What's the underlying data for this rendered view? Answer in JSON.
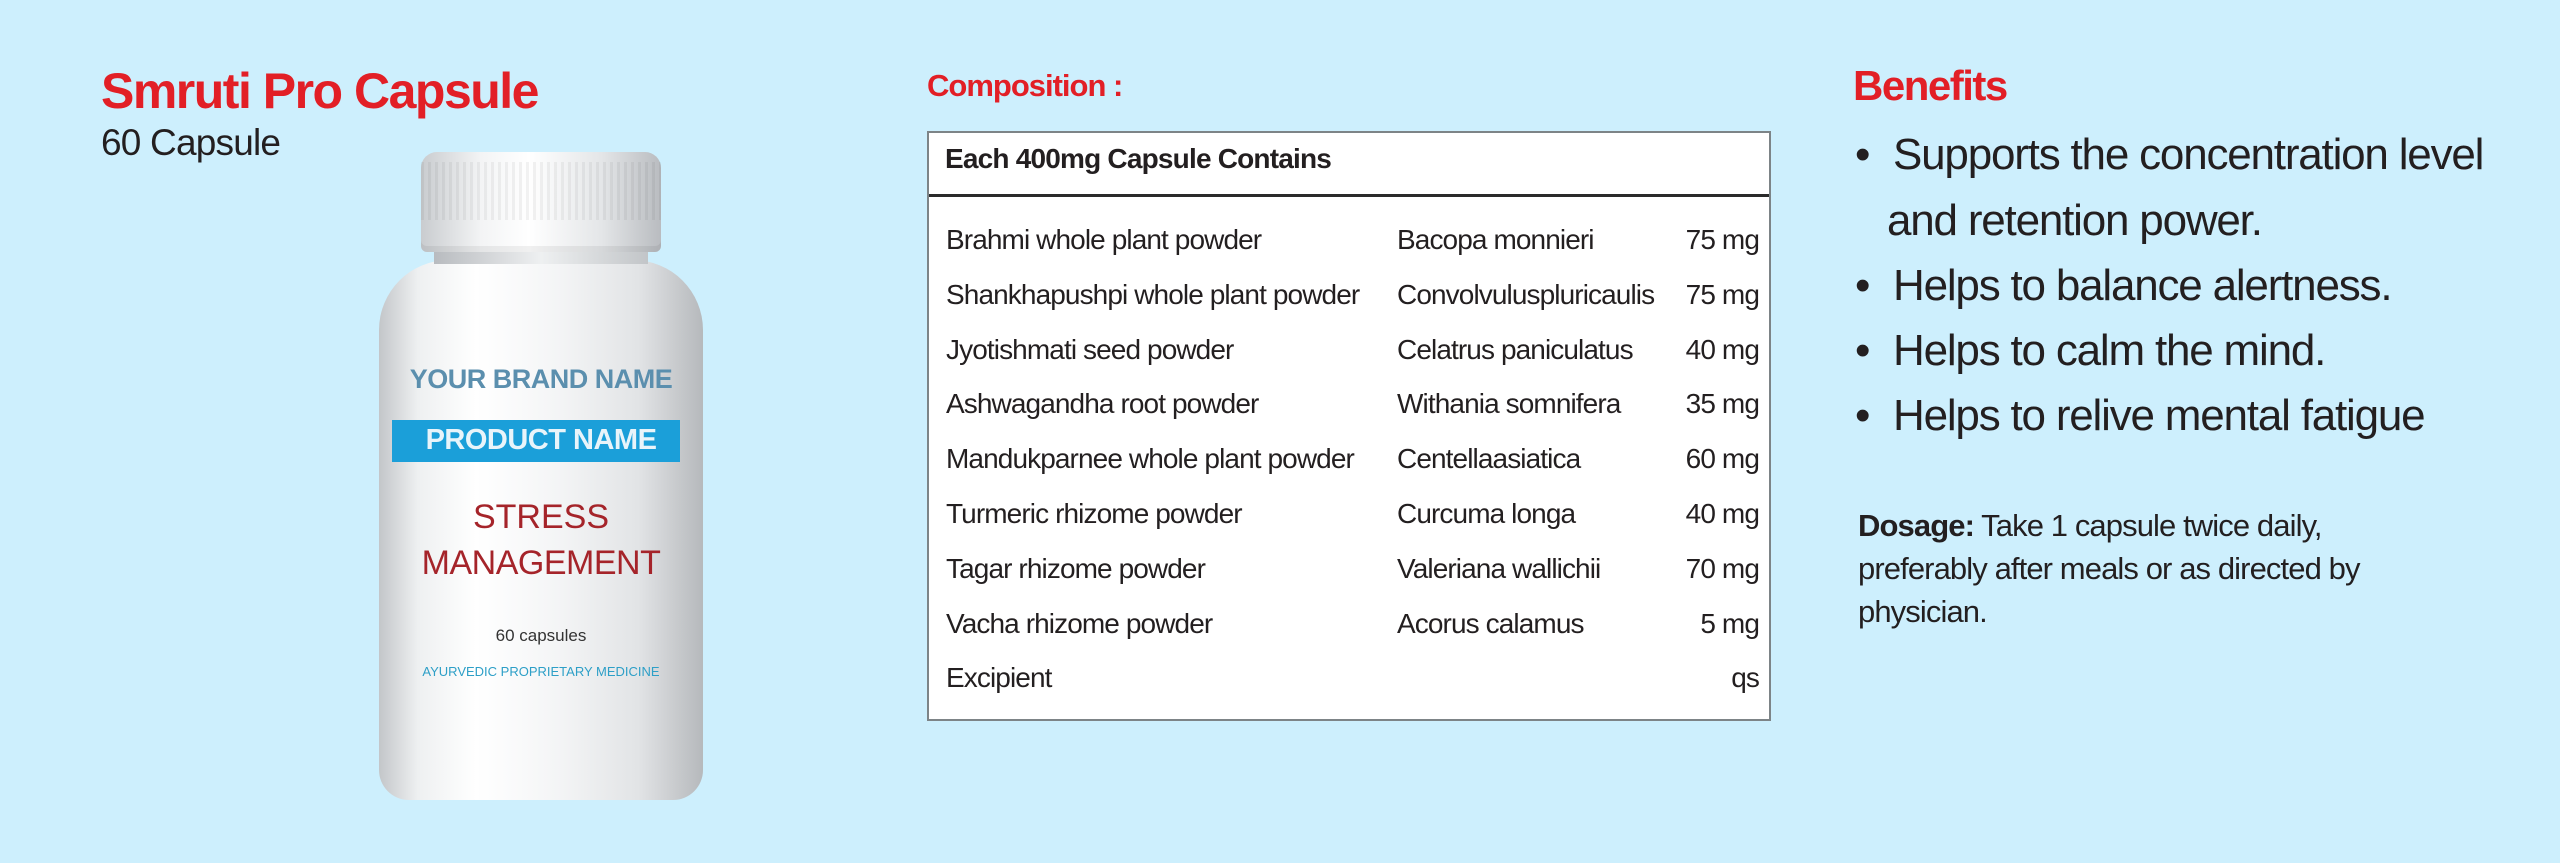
{
  "product": {
    "title": "Smruti Pro Capsule",
    "subtitle": "60 Capsule"
  },
  "bottle": {
    "brand": "YOUR BRAND NAME",
    "product_name": "PRODUCT NAME",
    "line1": "STRESS",
    "line2": "MANAGEMENT",
    "count": "60 capsules",
    "category": "AYURVEDIC PROPRIETARY MEDICINE"
  },
  "composition": {
    "title": "Composition :",
    "header": "Each 400mg Capsule Contains",
    "rows": [
      {
        "name": "Brahmi whole plant powder",
        "botanical": "Bacopa monnieri",
        "amount": "75 mg"
      },
      {
        "name": "Shankhapushpi whole plant powder",
        "botanical": "Convolvuluspluricaulis",
        "amount": "75 mg"
      },
      {
        "name": "Jyotishmati seed powder",
        "botanical": "Celatrus paniculatus",
        "amount": "40 mg"
      },
      {
        "name": "Ashwagandha root powder",
        "botanical": "Withania somnifera",
        "amount": "35 mg"
      },
      {
        "name": "Mandukparnee whole plant powder",
        "botanical": "Centellaasiatica",
        "amount": "60 mg"
      },
      {
        "name": "Turmeric rhizome powder",
        "botanical": "Curcuma longa",
        "amount": "40 mg"
      },
      {
        "name": "Tagar rhizome powder",
        "botanical": "Valeriana wallichii",
        "amount": "70 mg"
      },
      {
        "name": "Vacha rhizome powder",
        "botanical": "Acorus calamus",
        "amount": "5 mg"
      },
      {
        "name": "Excipient",
        "botanical": "",
        "amount": "qs"
      }
    ]
  },
  "benefits": {
    "title": "Benefits",
    "bullet": "•",
    "items": [
      {
        "line1": "Supports the concentration level",
        "line2": "and retention power."
      },
      {
        "line1": "Helps to balance alertness."
      },
      {
        "line1": "Helps to calm the mind."
      },
      {
        "line1": "Helps to relive mental fatigue"
      }
    ]
  },
  "dosage": {
    "label": "Dosage:",
    "line1": "Take 1 capsule twice daily,",
    "line2": "preferably after meals or as directed by",
    "line3": "physician."
  },
  "colors": {
    "background": "#cdeffd",
    "accent_red": "#e21f26",
    "label_blue": "#1b9fd9",
    "label_red": "#a5242a"
  }
}
